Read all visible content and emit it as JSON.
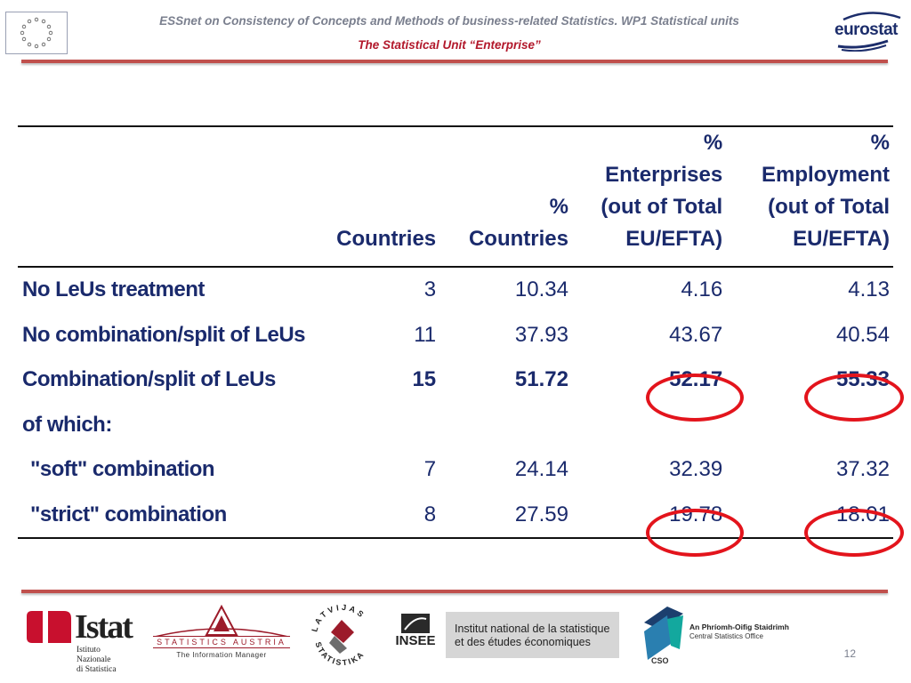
{
  "header": {
    "title": "ESSnet on Consistency of Concepts and Methods of business-related Statistics. WP1 Statistical units",
    "subtitle": "The Statistical Unit “Enterprise”",
    "eurostat_logo_text": "eurostat",
    "eu_flag_icon": "eu-flag-icon"
  },
  "table": {
    "columns": [
      "",
      "Countries",
      "% Countries",
      "% Enterprises (out of Total EU/EFTA)",
      "% Employment (out of Total EU/EFTA)"
    ],
    "column_lines": [
      [
        ""
      ],
      [
        "Countries"
      ],
      [
        "%",
        "Countries"
      ],
      [
        "%",
        "Enterprises",
        "(out of Total",
        "EU/EFTA)"
      ],
      [
        "%",
        "Employment",
        "(out of Total",
        "EU/EFTA)"
      ]
    ],
    "rows": [
      {
        "label": "No LeUs treatment",
        "countries": "3",
        "pct_countries": "10.34",
        "pct_enterprises": "4.16",
        "pct_employment": "4.13"
      },
      {
        "label": "No combination/split of LeUs",
        "countries": "11",
        "pct_countries": "37.93",
        "pct_enterprises": "43.67",
        "pct_employment": "40.54"
      },
      {
        "label": "Combination/split of LeUs",
        "countries": "15",
        "pct_countries": "51.72",
        "pct_enterprises": "52.17",
        "pct_employment": "55.33"
      },
      {
        "label": "of which:",
        "countries": "",
        "pct_countries": "",
        "pct_enterprises": "",
        "pct_employment": ""
      },
      {
        "label": "\"soft\" combination",
        "countries": "7",
        "pct_countries": "24.14",
        "pct_enterprises": "32.39",
        "pct_employment": "37.32"
      },
      {
        "label": "\"strict\" combination",
        "countries": "8",
        "pct_countries": "27.59",
        "pct_enterprises": "19.78",
        "pct_employment": "18.01"
      }
    ]
  },
  "footer": {
    "page_number": "12",
    "logos": {
      "istat": {
        "name": "Istat",
        "subtitle_line1": "Istituto Nazionale",
        "subtitle_line2": "di Statistica"
      },
      "statistics_austria": {
        "name": "STATISTICS AUSTRIA",
        "tagline": "The Information Manager"
      },
      "latvia": {
        "name": "LATVIJAS STATISTIKA"
      },
      "insee": {
        "name": "INSEE",
        "line1": "Institut national de la statistique",
        "line2": "et des études économiques"
      },
      "cso": {
        "name": "CSO",
        "irish": "An Phríomh-Oifig Staidrimh",
        "english": "Central Statistics Office"
      }
    }
  },
  "colors": {
    "table_text": "#1a2a6c",
    "accent_rule": "#c0504d",
    "highlight_circle": "#e3141c",
    "subtitle_red": "#b2182b",
    "header_grey": "#7a7f8e"
  }
}
